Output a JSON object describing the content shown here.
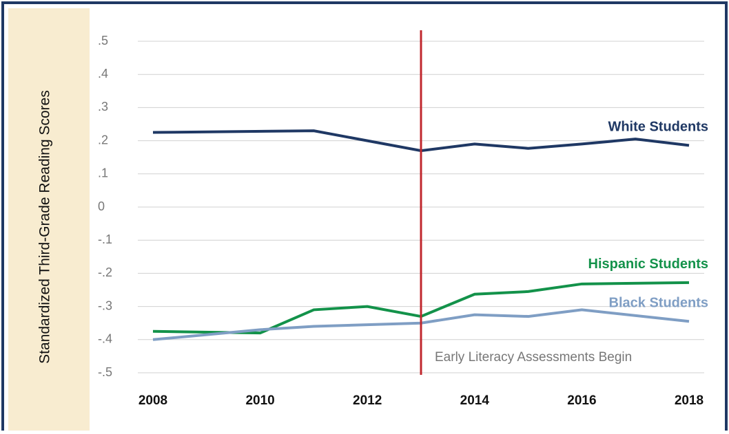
{
  "chart_data": {
    "type": "line",
    "y_label": "Standardized Third-Grade Reading Scores",
    "xlim": [
      2008,
      2018
    ],
    "xticks": [
      2008,
      2010,
      2012,
      2014,
      2016,
      2018
    ],
    "ylim": [
      -0.5,
      0.5
    ],
    "yticks": [
      {
        "value": 0.5,
        "label": ".5"
      },
      {
        "value": 0.4,
        "label": ".4"
      },
      {
        "value": 0.3,
        "label": ".3"
      },
      {
        "value": 0.2,
        "label": ".2"
      },
      {
        "value": 0.1,
        "label": ".1"
      },
      0,
      {
        "value": -0.1,
        "label": "-.1"
      },
      {
        "value": -0.2,
        "label": "-.2"
      },
      {
        "value": -0.3,
        "label": "-.3"
      },
      {
        "value": -0.4,
        "label": "-.4"
      },
      {
        "value": -0.5,
        "label": "-.5"
      }
    ],
    "grid": true,
    "series": [
      {
        "name": "White Students",
        "color": "#1f3864",
        "x": [
          2008,
          2011,
          2012,
          2013,
          2014,
          2015,
          2016,
          2017,
          2018
        ],
        "values": [
          0.225,
          0.23,
          0.2,
          0.17,
          0.19,
          0.177,
          0.19,
          0.205,
          0.186
        ]
      },
      {
        "name": "Hispanic Students",
        "color": "#13924a",
        "x": [
          2008,
          2010,
          2011,
          2012,
          2013,
          2014,
          2015,
          2016,
          2018
        ],
        "values": [
          -0.375,
          -0.38,
          -0.31,
          -0.3,
          -0.33,
          -0.263,
          -0.255,
          -0.232,
          -0.228
        ]
      },
      {
        "name": "Black Students",
        "color": "#7f9ec4",
        "x": [
          2008,
          2010,
          2011,
          2013,
          2014,
          2015,
          2016,
          2018
        ],
        "values": [
          -0.4,
          -0.37,
          -0.36,
          -0.35,
          -0.325,
          -0.33,
          -0.31,
          -0.345
        ]
      }
    ],
    "vline": {
      "x": 2013,
      "color": "#c0272d",
      "label": "Early Literacy Assessments Begin"
    }
  }
}
